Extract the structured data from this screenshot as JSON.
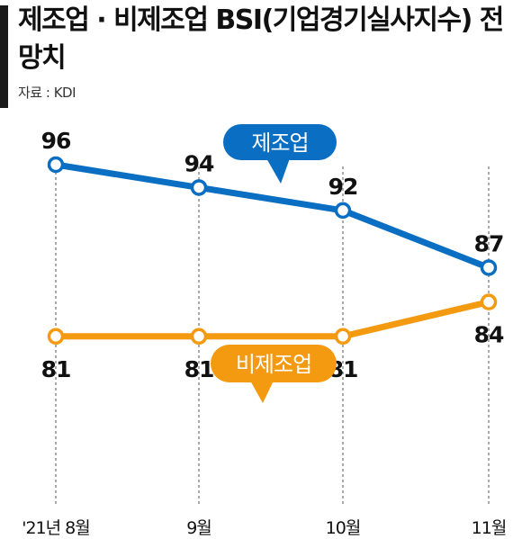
{
  "title": "제조업 · 비제조업 BSI(기업경기실사지수) 전망치",
  "source": "자료 : KDI",
  "colors": {
    "manufacturing": "#0a6fc2",
    "non_manufacturing": "#f39a11"
  },
  "chart_data": {
    "type": "line",
    "categories": [
      "'21년 8월",
      "9월",
      "10월",
      "11월"
    ],
    "series": [
      {
        "name": "제조업",
        "values": [
          96,
          94,
          92,
          87
        ]
      },
      {
        "name": "비제조업",
        "values": [
          81,
          81,
          81,
          84
        ]
      }
    ],
    "title": "제조업 · 비제조업 BSI(기업경기실사지수) 전망치",
    "xlabel": "",
    "ylabel": "",
    "grid": "vertical dashed lines at each month",
    "legend": "callout bubbles beside each line"
  }
}
